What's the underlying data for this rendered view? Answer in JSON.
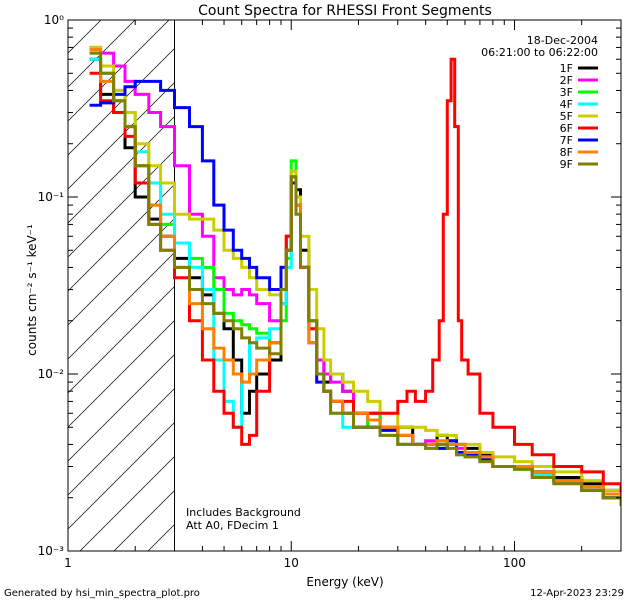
{
  "chart_data": {
    "type": "line",
    "title": "Count Spectra for RHESSI Front Segments",
    "xlabel": "Energy (keV)",
    "ylabel": "counts cm⁻² s⁻¹ keV⁻¹",
    "xscale": "log",
    "yscale": "log",
    "xlim": [
      1,
      300
    ],
    "ylim": [
      0.001,
      1
    ],
    "x_ticks": [
      {
        "value": 1,
        "label": "1"
      },
      {
        "value": 10,
        "label": "10"
      },
      {
        "value": 100,
        "label": "100"
      }
    ],
    "y_ticks": [
      {
        "value": 1,
        "label": "10⁰"
      },
      {
        "value": 0.1,
        "label": "10⁻¹"
      },
      {
        "value": 0.01,
        "label": "10⁻²"
      },
      {
        "value": 0.001,
        "label": "10⁻³"
      }
    ],
    "hatched_region": [
      1,
      3
    ],
    "date": "18-Dec-2004",
    "time_range": "06:21:00 to 06:22:00",
    "annotations": [
      "Includes Background",
      "Att A0, FDecim 1"
    ],
    "series": [
      {
        "name": "1F",
        "color": "#000000",
        "x": [
          1.25,
          1.4,
          1.6,
          1.8,
          2.0,
          2.3,
          2.6,
          3.0,
          3.5,
          4.0,
          4.5,
          5.0,
          5.5,
          6.0,
          6.5,
          7.0,
          8.0,
          9.0,
          9.5,
          10.0,
          10.5,
          11.0,
          12.0,
          13.0,
          14.0,
          15.0,
          17.0,
          19.0,
          22.0,
          25.0,
          30.0,
          35.0,
          40.0,
          45.0,
          50.0,
          55.0,
          60.0,
          70.0,
          80.0,
          100.0,
          120.0,
          150.0,
          200.0,
          250.0,
          300.0
        ],
        "y": [
          0.6,
          0.38,
          0.3,
          0.19,
          0.1,
          0.075,
          0.06,
          0.045,
          0.035,
          0.028,
          0.022,
          0.018,
          0.012,
          0.006,
          0.008,
          0.01,
          0.012,
          0.025,
          0.05,
          0.13,
          0.11,
          0.05,
          0.02,
          0.012,
          0.009,
          0.01,
          0.008,
          0.006,
          0.006,
          0.005,
          0.005,
          0.004,
          0.004,
          0.0045,
          0.004,
          0.004,
          0.0038,
          0.0035,
          0.003,
          0.003,
          0.0028,
          0.0026,
          0.0024,
          0.0022,
          0.002
        ]
      },
      {
        "name": "2F",
        "color": "#ff00ff",
        "x": [
          1.25,
          1.4,
          1.6,
          1.8,
          2.0,
          2.3,
          2.6,
          3.0,
          3.5,
          4.0,
          4.5,
          5.0,
          5.5,
          6.0,
          6.5,
          7.0,
          8.0,
          9.0,
          9.5,
          10.0,
          10.5,
          11.0,
          12.0,
          13.0,
          14.0,
          15.0,
          17.0,
          19.0,
          22.0,
          25.0,
          30.0,
          35.0,
          40.0,
          45.0,
          50.0,
          55.0,
          60.0,
          70.0,
          80.0,
          100.0,
          120.0,
          150.0,
          200.0,
          250.0,
          300.0
        ],
        "y": [
          0.7,
          0.65,
          0.55,
          0.45,
          0.38,
          0.3,
          0.25,
          0.15,
          0.08,
          0.06,
          0.035,
          0.03,
          0.028,
          0.03,
          0.028,
          0.025,
          0.02,
          0.04,
          0.06,
          0.12,
          0.09,
          0.04,
          0.02,
          0.012,
          0.01,
          0.009,
          0.008,
          0.006,
          0.005,
          0.005,
          0.004,
          0.004,
          0.0042,
          0.004,
          0.004,
          0.0038,
          0.0036,
          0.0034,
          0.003,
          0.003,
          0.0028,
          0.0025,
          0.0023,
          0.002,
          0.0019
        ]
      },
      {
        "name": "3F",
        "color": "#00ff00",
        "x": [
          1.25,
          1.4,
          1.6,
          1.8,
          2.0,
          2.3,
          2.6,
          3.0,
          3.5,
          4.0,
          4.5,
          5.0,
          5.5,
          6.0,
          6.5,
          7.0,
          8.0,
          9.0,
          9.5,
          10.0,
          10.5,
          11.0,
          12.0,
          13.0,
          14.0,
          15.0,
          17.0,
          19.0,
          22.0,
          25.0,
          30.0,
          35.0,
          40.0,
          45.0,
          50.0,
          55.0,
          60.0,
          70.0,
          80.0,
          100.0,
          120.0,
          150.0,
          200.0,
          250.0,
          300.0
        ],
        "y": [
          0.65,
          0.5,
          0.35,
          0.25,
          0.15,
          0.09,
          0.07,
          0.055,
          0.045,
          0.04,
          0.03,
          0.022,
          0.02,
          0.019,
          0.018,
          0.017,
          0.015,
          0.02,
          0.045,
          0.16,
          0.1,
          0.04,
          0.02,
          0.01,
          0.008,
          0.007,
          0.006,
          0.005,
          0.006,
          0.005,
          0.004,
          0.004,
          0.004,
          0.0038,
          0.0042,
          0.0035,
          0.0035,
          0.0033,
          0.003,
          0.0029,
          0.0027,
          0.0025,
          0.0023,
          0.0021,
          0.0019
        ]
      },
      {
        "name": "4F",
        "color": "#00ffff",
        "x": [
          1.25,
          1.4,
          1.6,
          1.8,
          2.0,
          2.3,
          2.6,
          3.0,
          3.5,
          4.0,
          4.5,
          5.0,
          5.5,
          6.0,
          6.5,
          7.0,
          8.0,
          9.0,
          9.5,
          10.0,
          10.5,
          11.0,
          12.0,
          13.0,
          14.0,
          15.0,
          17.0,
          19.0,
          22.0,
          25.0,
          30.0,
          35.0,
          40.0,
          45.0,
          50.0,
          55.0,
          60.0,
          70.0,
          80.0,
          100.0,
          120.0,
          150.0,
          200.0,
          250.0,
          300.0
        ],
        "y": [
          0.6,
          0.5,
          0.4,
          0.3,
          0.18,
          0.12,
          0.08,
          0.055,
          0.04,
          0.03,
          0.012,
          0.007,
          0.005,
          0.009,
          0.015,
          0.016,
          0.018,
          0.025,
          0.04,
          0.14,
          0.1,
          0.04,
          0.018,
          0.01,
          0.008,
          0.006,
          0.005,
          0.005,
          0.005,
          0.0045,
          0.004,
          0.004,
          0.0038,
          0.004,
          0.004,
          0.0035,
          0.0035,
          0.0032,
          0.003,
          0.0029,
          0.0027,
          0.0025,
          0.0022,
          0.002,
          0.0018
        ]
      },
      {
        "name": "5F",
        "color": "#cccc00",
        "x": [
          1.25,
          1.4,
          1.6,
          1.8,
          2.0,
          2.3,
          2.6,
          3.0,
          3.5,
          4.0,
          4.5,
          5.0,
          5.5,
          6.0,
          6.5,
          7.0,
          8.0,
          9.0,
          9.5,
          10.0,
          10.5,
          11.0,
          12.0,
          13.0,
          14.0,
          15.0,
          17.0,
          19.0,
          22.0,
          25.0,
          30.0,
          35.0,
          40.0,
          45.0,
          50.0,
          55.0,
          60.0,
          70.0,
          80.0,
          100.0,
          120.0,
          150.0,
          200.0,
          250.0,
          300.0
        ],
        "y": [
          0.7,
          0.55,
          0.4,
          0.3,
          0.2,
          0.15,
          0.12,
          0.08,
          0.075,
          0.075,
          0.065,
          0.05,
          0.045,
          0.04,
          0.035,
          0.03,
          0.028,
          0.04,
          0.06,
          0.14,
          0.1,
          0.06,
          0.03,
          0.018,
          0.012,
          0.01,
          0.009,
          0.008,
          0.007,
          0.006,
          0.005,
          0.005,
          0.0048,
          0.0045,
          0.0045,
          0.004,
          0.004,
          0.0036,
          0.0034,
          0.0032,
          0.003,
          0.0028,
          0.0025,
          0.0022,
          0.002
        ]
      },
      {
        "name": "6F",
        "color": "#ff0000",
        "x": [
          1.25,
          1.4,
          1.6,
          1.8,
          2.0,
          2.3,
          2.6,
          3.0,
          3.5,
          4.0,
          4.5,
          5.0,
          5.5,
          6.0,
          6.5,
          7.0,
          8.0,
          9.0,
          9.5,
          10.0,
          10.5,
          11.0,
          12.0,
          13.0,
          14.0,
          15.0,
          17.0,
          19.0,
          22.0,
          25.0,
          30.0,
          33.0,
          36.0,
          40.0,
          43.0,
          46.0,
          48.0,
          50.0,
          52.0,
          54.0,
          56.0,
          58.0,
          62.0,
          70.0,
          80.0,
          100.0,
          120.0,
          150.0,
          200.0,
          250.0,
          300.0
        ],
        "y": [
          0.5,
          0.35,
          0.3,
          0.22,
          0.12,
          0.07,
          0.05,
          0.035,
          0.02,
          0.012,
          0.008,
          0.006,
          0.005,
          0.004,
          0.0045,
          0.008,
          0.015,
          0.03,
          0.06,
          0.12,
          0.09,
          0.04,
          0.018,
          0.01,
          0.008,
          0.007,
          0.007,
          0.006,
          0.006,
          0.006,
          0.007,
          0.008,
          0.007,
          0.008,
          0.012,
          0.02,
          0.08,
          0.35,
          0.6,
          0.25,
          0.02,
          0.012,
          0.01,
          0.006,
          0.005,
          0.004,
          0.0035,
          0.003,
          0.0028,
          0.0024,
          0.002
        ]
      },
      {
        "name": "7F",
        "color": "#0000ff",
        "x": [
          1.25,
          1.4,
          1.6,
          1.8,
          2.0,
          2.3,
          2.6,
          3.0,
          3.5,
          4.0,
          4.5,
          5.0,
          5.5,
          6.0,
          6.5,
          7.0,
          8.0,
          9.0,
          9.5,
          10.0,
          10.5,
          11.0,
          12.0,
          13.0,
          14.0,
          15.0,
          17.0,
          19.0,
          22.0,
          25.0,
          30.0,
          35.0,
          40.0,
          45.0,
          50.0,
          55.0,
          60.0,
          70.0,
          80.0,
          100.0,
          120.0,
          150.0,
          200.0,
          250.0,
          300.0
        ],
        "y": [
          0.33,
          0.34,
          0.38,
          0.42,
          0.45,
          0.45,
          0.4,
          0.32,
          0.25,
          0.16,
          0.09,
          0.065,
          0.05,
          0.045,
          0.04,
          0.035,
          0.03,
          0.04,
          0.05,
          0.12,
          0.09,
          0.04,
          0.015,
          0.009,
          0.008,
          0.007,
          0.006,
          0.005,
          0.005,
          0.0048,
          0.0045,
          0.004,
          0.004,
          0.0038,
          0.0042,
          0.0036,
          0.0035,
          0.0033,
          0.003,
          0.003,
          0.0028,
          0.0025,
          0.0022,
          0.002,
          0.0018
        ]
      },
      {
        "name": "8F",
        "color": "#ff8000",
        "x": [
          1.25,
          1.4,
          1.6,
          1.8,
          2.0,
          2.3,
          2.6,
          3.0,
          3.5,
          4.0,
          4.5,
          5.0,
          5.5,
          6.0,
          6.5,
          7.0,
          8.0,
          9.0,
          9.5,
          10.0,
          10.5,
          11.0,
          12.0,
          13.0,
          14.0,
          15.0,
          17.0,
          19.0,
          22.0,
          25.0,
          30.0,
          35.0,
          40.0,
          45.0,
          50.0,
          55.0,
          60.0,
          70.0,
          80.0,
          100.0,
          120.0,
          150.0,
          200.0,
          250.0,
          300.0
        ],
        "y": [
          0.68,
          0.45,
          0.35,
          0.25,
          0.15,
          0.09,
          0.06,
          0.04,
          0.025,
          0.018,
          0.014,
          0.012,
          0.01,
          0.009,
          0.01,
          0.012,
          0.015,
          0.03,
          0.05,
          0.13,
          0.09,
          0.04,
          0.015,
          0.01,
          0.008,
          0.007,
          0.006,
          0.006,
          0.0055,
          0.005,
          0.0045,
          0.004,
          0.004,
          0.0042,
          0.004,
          0.004,
          0.0036,
          0.0034,
          0.003,
          0.003,
          0.0028,
          0.0025,
          0.0023,
          0.0021,
          0.0019
        ]
      },
      {
        "name": "9F",
        "color": "#808000",
        "x": [
          1.25,
          1.4,
          1.6,
          1.8,
          2.0,
          2.3,
          2.6,
          3.0,
          3.5,
          4.0,
          4.5,
          5.0,
          5.5,
          6.0,
          6.5,
          7.0,
          8.0,
          9.0,
          9.5,
          10.0,
          10.5,
          11.0,
          12.0,
          13.0,
          14.0,
          15.0,
          17.0,
          19.0,
          22.0,
          25.0,
          30.0,
          35.0,
          40.0,
          45.0,
          50.0,
          55.0,
          60.0,
          70.0,
          80.0,
          100.0,
          120.0,
          150.0,
          200.0,
          250.0,
          300.0
        ],
        "y": [
          0.65,
          0.5,
          0.35,
          0.25,
          0.15,
          0.07,
          0.05,
          0.04,
          0.03,
          0.025,
          0.022,
          0.02,
          0.018,
          0.016,
          0.015,
          0.014,
          0.013,
          0.03,
          0.05,
          0.13,
          0.08,
          0.04,
          0.02,
          0.01,
          0.008,
          0.006,
          0.006,
          0.005,
          0.005,
          0.0045,
          0.004,
          0.004,
          0.0038,
          0.004,
          0.0038,
          0.0035,
          0.0034,
          0.0032,
          0.003,
          0.0029,
          0.0026,
          0.0024,
          0.0022,
          0.002,
          0.0018
        ]
      }
    ]
  },
  "footer": {
    "left": "Generated by hsi_min_spectra_plot.pro",
    "right": "12-Apr-2023 23:29"
  }
}
